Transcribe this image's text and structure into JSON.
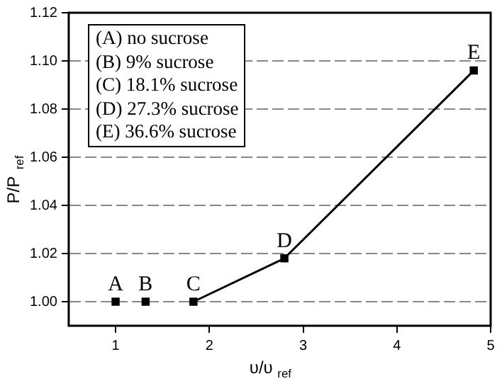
{
  "chart_data": {
    "type": "line",
    "xlabel": "υ/υ$_{ref}$",
    "ylabel": "P/P$_{ref}$",
    "xlim": [
      0.5,
      5
    ],
    "xticks": [
      1,
      2,
      3,
      4,
      5
    ],
    "ylim": [
      0.99,
      1.12
    ],
    "yticks": [
      {
        "value": 1,
        "label": "1.00"
      },
      {
        "value": 1.02,
        "label": "1.02"
      },
      {
        "value": 1.04,
        "label": "1.04"
      },
      {
        "value": 1.06,
        "label": "1.06"
      },
      {
        "value": 1.08,
        "label": "1.08"
      },
      {
        "value": 1.1,
        "label": "1.10"
      },
      {
        "value": 1.12,
        "label": "1.12"
      }
    ],
    "grid": "y",
    "marker": "square",
    "line_style": "solid",
    "series": [
      {
        "type": "scatter",
        "color": "#000000",
        "x": [
          1,
          1.32
        ],
        "values": [
          1,
          1
        ]
      },
      {
        "color": "#000000",
        "x": [
          1.83,
          2.8,
          4.82
        ],
        "values": [
          1,
          1.018,
          1.096
        ]
      }
    ],
    "annotations": [
      {
        "text": "A",
        "x": 1,
        "y": 1
      },
      {
        "text": "B",
        "x": 1.32,
        "y": 1
      },
      {
        "text": "C",
        "x": 1.83,
        "y": 1
      },
      {
        "text": "D",
        "x": 2.8,
        "y": 1.018
      },
      {
        "text": "E",
        "x": 4.82,
        "y": 1.096
      },
      "(A) no sucrose",
      "(B) 9% sucrose",
      "(C) 18.1% sucrose",
      "(D) 27.3% sucrose",
      "(E) 36.6% sucrose"
    ]
  }
}
